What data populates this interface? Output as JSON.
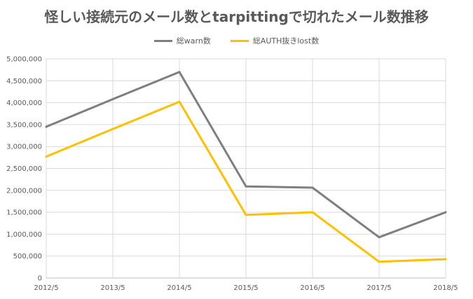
{
  "chart_data": {
    "type": "line",
    "title": "怪しい接続元のメール数とtarpittingで切れたメール数推移",
    "xlabel": "",
    "ylabel": "",
    "categories": [
      "2012/5",
      "2013/5",
      "2014/5",
      "2015/5",
      "2016/5",
      "2017/5",
      "2018/5"
    ],
    "y_ticks": [
      "0",
      "500,000",
      "1,000,000",
      "1,500,000",
      "2,000,000",
      "2,500,000",
      "3,000,000",
      "3,500,000",
      "4,000,000",
      "4,500,000",
      "5,000,000"
    ],
    "ylim": [
      0,
      5000000
    ],
    "grid": true,
    "legend_position": "top",
    "series": [
      {
        "name": "総warn数",
        "color": "#7f7f7f",
        "values": [
          3450000,
          4080000,
          4700000,
          2090000,
          2060000,
          930000,
          1500000
        ]
      },
      {
        "name": "総AUTH抜きlost数",
        "color": "#ffc000",
        "values": [
          2770000,
          3400000,
          4020000,
          1440000,
          1500000,
          370000,
          430000
        ]
      }
    ]
  }
}
